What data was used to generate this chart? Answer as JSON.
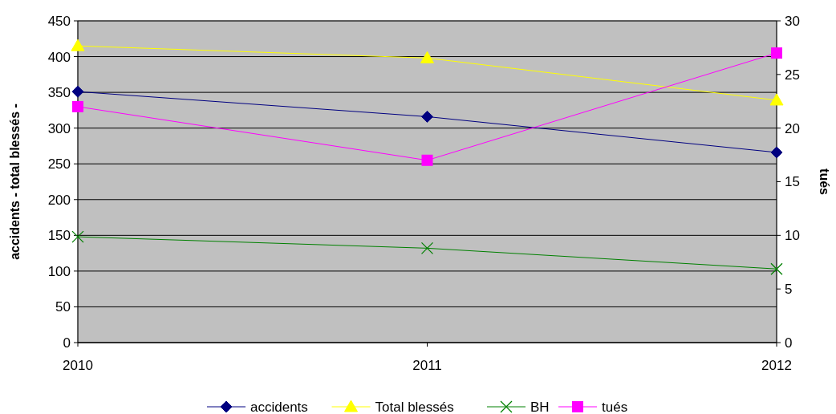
{
  "chart_data": {
    "type": "line",
    "categories": [
      "2010",
      "2011",
      "2012"
    ],
    "ylabel": "accidents - total blessés -",
    "y2label": "tués",
    "ylim": [
      0,
      450
    ],
    "yticks": [
      0,
      50,
      100,
      150,
      200,
      250,
      300,
      350,
      400,
      450
    ],
    "y2lim": [
      0,
      30
    ],
    "y2ticks": [
      0,
      5,
      10,
      15,
      20,
      25,
      30
    ],
    "grid": "y",
    "legend": "bottom",
    "series": [
      {
        "name": "accidents",
        "color": "#000080",
        "marker": "diamond",
        "values": [
          351,
          316,
          266
        ]
      },
      {
        "name": "Total blessés",
        "color": "#ffff00",
        "marker": "triangle",
        "values": [
          415,
          398,
          339
        ]
      },
      {
        "name": "BH",
        "color": "#008000",
        "marker": "cross",
        "values": [
          148,
          132,
          103
        ]
      },
      {
        "name": "tués",
        "color": "#ff00ff",
        "marker": "square",
        "axis": "y2",
        "values": [
          22,
          17,
          27
        ]
      }
    ]
  }
}
